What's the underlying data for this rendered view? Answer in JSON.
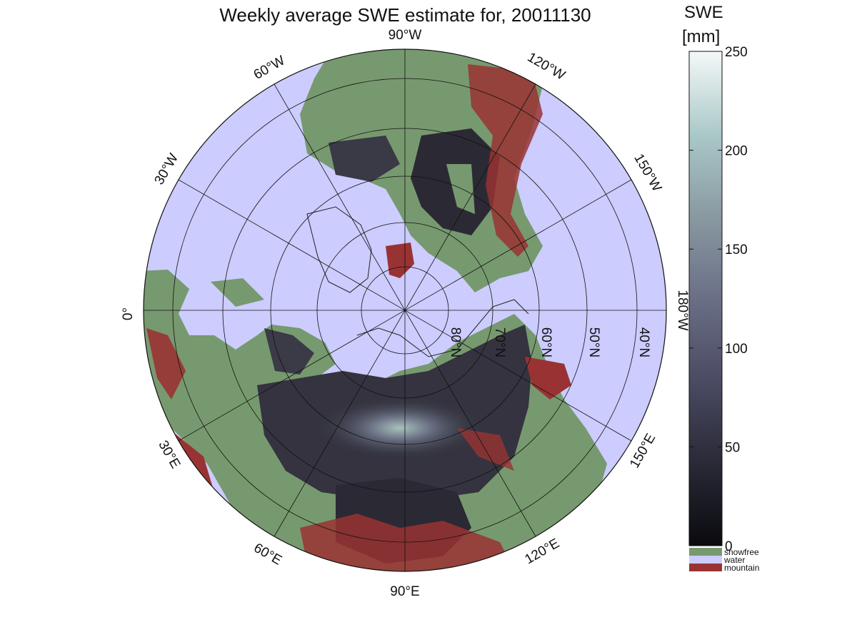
{
  "title": "Weekly average SWE estimate for, 20011130",
  "colorbar": {
    "title": "SWE",
    "unit": "[mm]",
    "ticks": [
      "0",
      "50",
      "100",
      "150",
      "200",
      "250"
    ],
    "range": [
      0,
      250
    ],
    "gradient": [
      "#0a0a0e",
      "#2a2a38",
      "#4a4a62",
      "#6a6f86",
      "#8a9aa2",
      "#aac8c8",
      "#f4f8f8"
    ]
  },
  "legend": [
    {
      "label": "snowfree",
      "color": "#77996f"
    },
    {
      "label": "water",
      "color": "#ccccff"
    },
    {
      "label": "mountain",
      "color": "#993333"
    }
  ],
  "map": {
    "projection": "north polar stereographic",
    "ocean_color": "#ccccff",
    "land_color": "#77996f",
    "mountain_color": "#993333",
    "longitude_labels": {
      "top": "90°W",
      "l60w": "60°W",
      "l30w": "30°W",
      "left": "0°",
      "bottom": "90°E",
      "l60e": "60°E",
      "l30e": "30°E",
      "l120e": "120°E",
      "l150e": "150°E",
      "right": "180°W",
      "l150w": "150°W",
      "l120w": "120°W"
    },
    "latitude_labels": [
      "80°N",
      "70°N",
      "60°N",
      "50°N",
      "40°N"
    ]
  }
}
